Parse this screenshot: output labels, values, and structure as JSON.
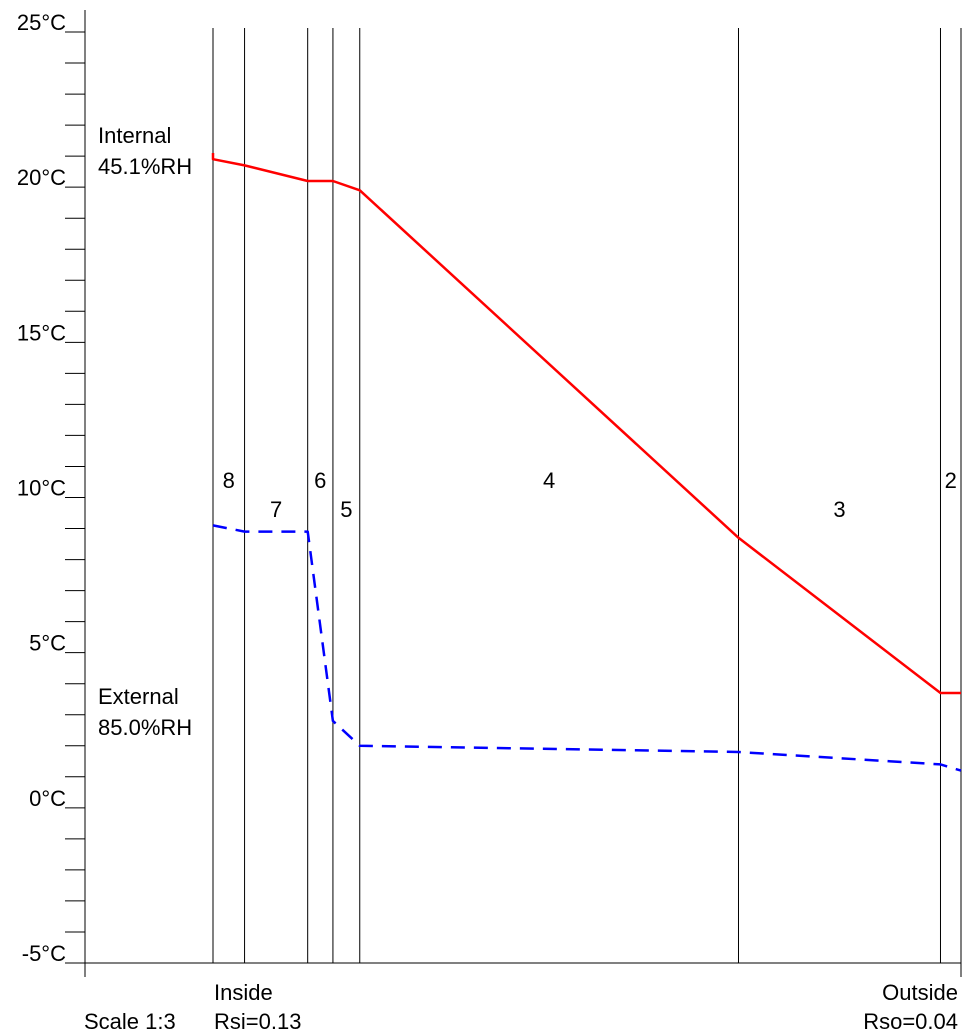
{
  "chart_data": {
    "type": "line",
    "ylim": [
      -5,
      26.2
    ],
    "y_ticks": [
      "25°C",
      "20°C",
      "15°C",
      "10°C",
      "5°C",
      "0°C",
      "-5°C"
    ],
    "y_tick_values": [
      25,
      20,
      15,
      10,
      5,
      0,
      -5
    ],
    "x_unit": "mm",
    "xlim": [
      0,
      237
    ],
    "interfaces_mm": [
      0,
      10,
      30,
      38,
      46.5,
      166.5,
      230.5,
      237
    ],
    "layers": [
      {
        "label": "8",
        "from_mm": 0,
        "to_mm": 10
      },
      {
        "label": "7",
        "from_mm": 10,
        "to_mm": 30
      },
      {
        "label": "6",
        "from_mm": 30,
        "to_mm": 38
      },
      {
        "label": "5",
        "from_mm": 38,
        "to_mm": 46.5
      },
      {
        "label": "4",
        "from_mm": 46.5,
        "to_mm": 166.5
      },
      {
        "label": "3",
        "from_mm": 166.5,
        "to_mm": 230.5
      },
      {
        "label": "2",
        "from_mm": 230.5,
        "to_mm": 237
      }
    ],
    "series": [
      {
        "color": "#ff0000",
        "dash": "solid",
        "x": [
          0,
          0,
          10,
          30,
          38,
          46.5,
          166.5,
          230.5,
          237
        ],
        "y": [
          21.1,
          20.9,
          20.7,
          20.2,
          20.2,
          19.9,
          8.7,
          3.7,
          3.7
        ]
      },
      {
        "color": "#0000ff",
        "dash": "dashed",
        "x": [
          0,
          10,
          30,
          38,
          46.5,
          166.5,
          230.5,
          237
        ],
        "y": [
          9.1,
          8.9,
          8.9,
          2.8,
          2.0,
          1.8,
          1.4,
          1.2
        ]
      }
    ],
    "annotations": {
      "internal_label": "Internal",
      "internal_rh": "45.1%RH",
      "external_label": "External",
      "external_rh": "85.0%RH",
      "inside_label": "Inside",
      "outside_label": "Outside",
      "rsi": "Rsi=0.13",
      "rso": "Rso=0.04",
      "scale": "Scale 1:3"
    }
  }
}
